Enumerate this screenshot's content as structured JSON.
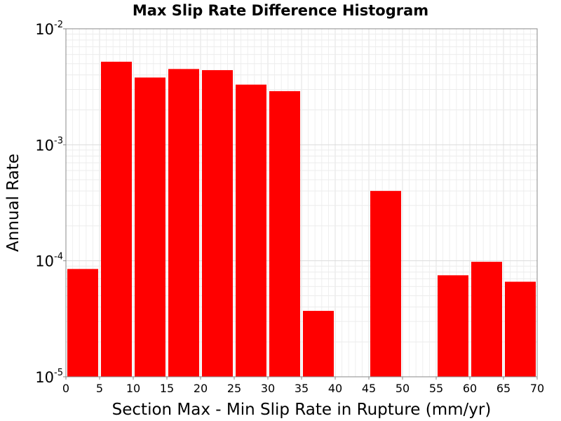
{
  "chart_data": {
    "type": "bar",
    "title": "Max Slip Rate Difference Histogram",
    "xlabel": "Section Max - Min Slip Rate in Rupture (mm/yr)",
    "ylabel": "Annual Rate",
    "y_scale": "log",
    "xlim": [
      0,
      70
    ],
    "ylim": [
      1e-05,
      0.01
    ],
    "bin_width": 5,
    "x_ticks": [
      0,
      5,
      10,
      15,
      20,
      25,
      30,
      35,
      40,
      45,
      50,
      55,
      60,
      65,
      70
    ],
    "y_ticks": [
      {
        "value": 1e-05,
        "base": "10",
        "exp": "-5"
      },
      {
        "value": 0.0001,
        "base": "10",
        "exp": "-4"
      },
      {
        "value": 0.001,
        "base": "10",
        "exp": "-3"
      },
      {
        "value": 0.01,
        "base": "10",
        "exp": "-2"
      }
    ],
    "bins": [
      {
        "x_start": 0,
        "x_end": 5,
        "value": 8.5e-05
      },
      {
        "x_start": 5,
        "x_end": 10,
        "value": 0.0052
      },
      {
        "x_start": 10,
        "x_end": 15,
        "value": 0.0038
      },
      {
        "x_start": 15,
        "x_end": 20,
        "value": 0.0045
      },
      {
        "x_start": 20,
        "x_end": 25,
        "value": 0.0044
      },
      {
        "x_start": 25,
        "x_end": 30,
        "value": 0.0033
      },
      {
        "x_start": 30,
        "x_end": 35,
        "value": 0.0029
      },
      {
        "x_start": 35,
        "x_end": 40,
        "value": 3.7e-05
      },
      {
        "x_start": 45,
        "x_end": 50,
        "value": 0.0004
      },
      {
        "x_start": 55,
        "x_end": 60,
        "value": 7.5e-05
      },
      {
        "x_start": 60,
        "x_end": 65,
        "value": 9.8e-05
      },
      {
        "x_start": 65,
        "x_end": 70,
        "value": 6.6e-05
      }
    ],
    "grid": true,
    "colors": {
      "bar": "#ff0000",
      "grid": "#e3e3e3",
      "axis": "#888888",
      "background": "#ffffff"
    }
  }
}
